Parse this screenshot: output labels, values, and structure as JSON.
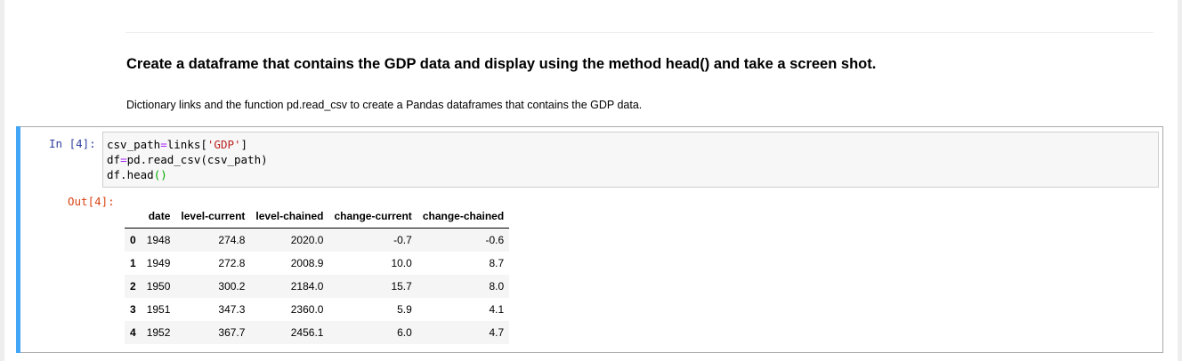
{
  "markdown": {
    "heading": "Create a dataframe that contains the GDP data and display using the method head() and take a screen shot.",
    "text": "Dictionary links and the function pd.read_csv to create a Pandas dataframes that contains the GDP data."
  },
  "cell": {
    "in_prompt": "In [4]:",
    "out_prompt": "Out[4]:",
    "code": {
      "l1_a": "csv_path",
      "l1_op": "=",
      "l1_b": "links[",
      "l1_str": "'GDP'",
      "l1_c": "]",
      "l2_a": "df",
      "l2_op": "=",
      "l2_b": "pd.read_csv(csv_path)",
      "l3_a": "df.head",
      "l3_paren": "()"
    }
  },
  "dataframe": {
    "columns": [
      "date",
      "level-current",
      "level-chained",
      "change-current",
      "change-chained"
    ],
    "rows": [
      {
        "index": "0",
        "cells": [
          "1948",
          "274.8",
          "2020.0",
          "-0.7",
          "-0.6"
        ]
      },
      {
        "index": "1",
        "cells": [
          "1949",
          "272.8",
          "2008.9",
          "10.0",
          "8.7"
        ]
      },
      {
        "index": "2",
        "cells": [
          "1950",
          "300.2",
          "2184.0",
          "15.7",
          "8.0"
        ]
      },
      {
        "index": "3",
        "cells": [
          "1951",
          "347.3",
          "2360.0",
          "5.9",
          "4.1"
        ]
      },
      {
        "index": "4",
        "cells": [
          "1952",
          "367.7",
          "2456.1",
          "6.0",
          "4.7"
        ]
      }
    ]
  },
  "colors": {
    "cell_selected_bar": "#42a5f5",
    "in_prompt": "#303f9f",
    "out_prompt": "#d84315"
  }
}
